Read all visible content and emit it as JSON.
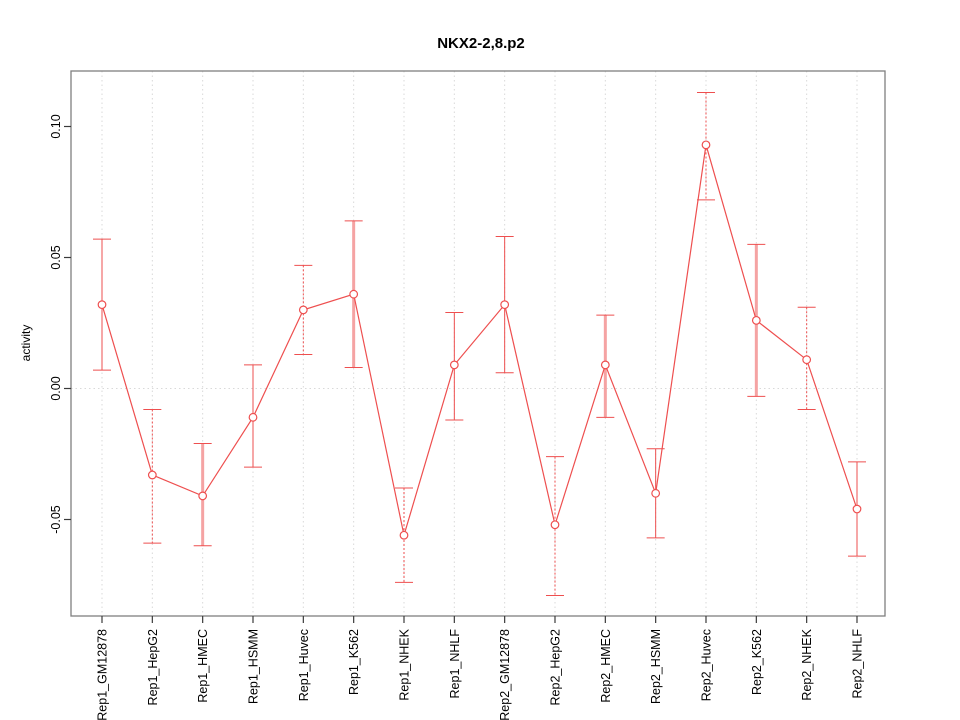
{
  "title": "NKX2-2,8.p2",
  "chart_data": {
    "type": "line",
    "title": "NKX2-2,8.p2",
    "xlabel": "",
    "ylabel": "activity",
    "legend": "none",
    "grid": {
      "vertical": "dotted line at every category",
      "horizontal": "dotted line at y=0 only",
      "color": "#d9d9d9"
    },
    "categories": [
      "Rep1_GM12878",
      "Rep1_HepG2",
      "Rep1_HMEC",
      "Rep1_HSMM",
      "Rep1_Huvec",
      "Rep1_K562",
      "Rep1_NHEK",
      "Rep1_NHLF",
      "Rep2_GM12878",
      "Rep2_HepG2",
      "Rep2_HMEC",
      "Rep2_HSMM",
      "Rep2_Huvec",
      "Rep2_K562",
      "Rep2_NHEK",
      "Rep2_NHLF"
    ],
    "series": [
      {
        "name": "activity",
        "values": [
          0.032,
          -0.033,
          -0.041,
          -0.011,
          0.03,
          0.036,
          -0.056,
          0.009,
          0.032,
          -0.052,
          0.009,
          -0.04,
          0.093,
          0.026,
          0.011,
          -0.046
        ],
        "err_low": [
          0.007,
          -0.059,
          -0.06,
          -0.03,
          0.013,
          0.008,
          -0.074,
          -0.012,
          0.006,
          -0.079,
          -0.011,
          -0.057,
          0.072,
          -0.003,
          -0.008,
          -0.064
        ],
        "err_high": [
          0.057,
          -0.008,
          -0.021,
          0.009,
          0.047,
          0.064,
          -0.038,
          0.029,
          0.058,
          -0.026,
          0.028,
          -0.023,
          0.113,
          0.055,
          0.031,
          -0.028
        ]
      }
    ],
    "error_bar_styles": [
      "solid",
      "dashed",
      "thick",
      "solid",
      "dashed",
      "thick",
      "dashed",
      "solid",
      "solid",
      "dashed",
      "thick",
      "solid",
      "dashed",
      "thick",
      "dashed",
      "solid"
    ],
    "point_marker": "open-circle",
    "colors": {
      "series": "#ee4f4f",
      "thick_error_bar": "#f5a3a3",
      "grid": "#d9d9d9",
      "frame": "#7f7f7f",
      "tick": "#3a3a3a",
      "text": "#000000"
    },
    "yticks": {
      "values": [
        -0.05,
        0.0,
        0.05,
        0.1
      ],
      "labels": [
        "-0.05",
        "0.00",
        "0.05",
        "0.10"
      ]
    },
    "ylim": [
      -0.087,
      0.121
    ]
  }
}
